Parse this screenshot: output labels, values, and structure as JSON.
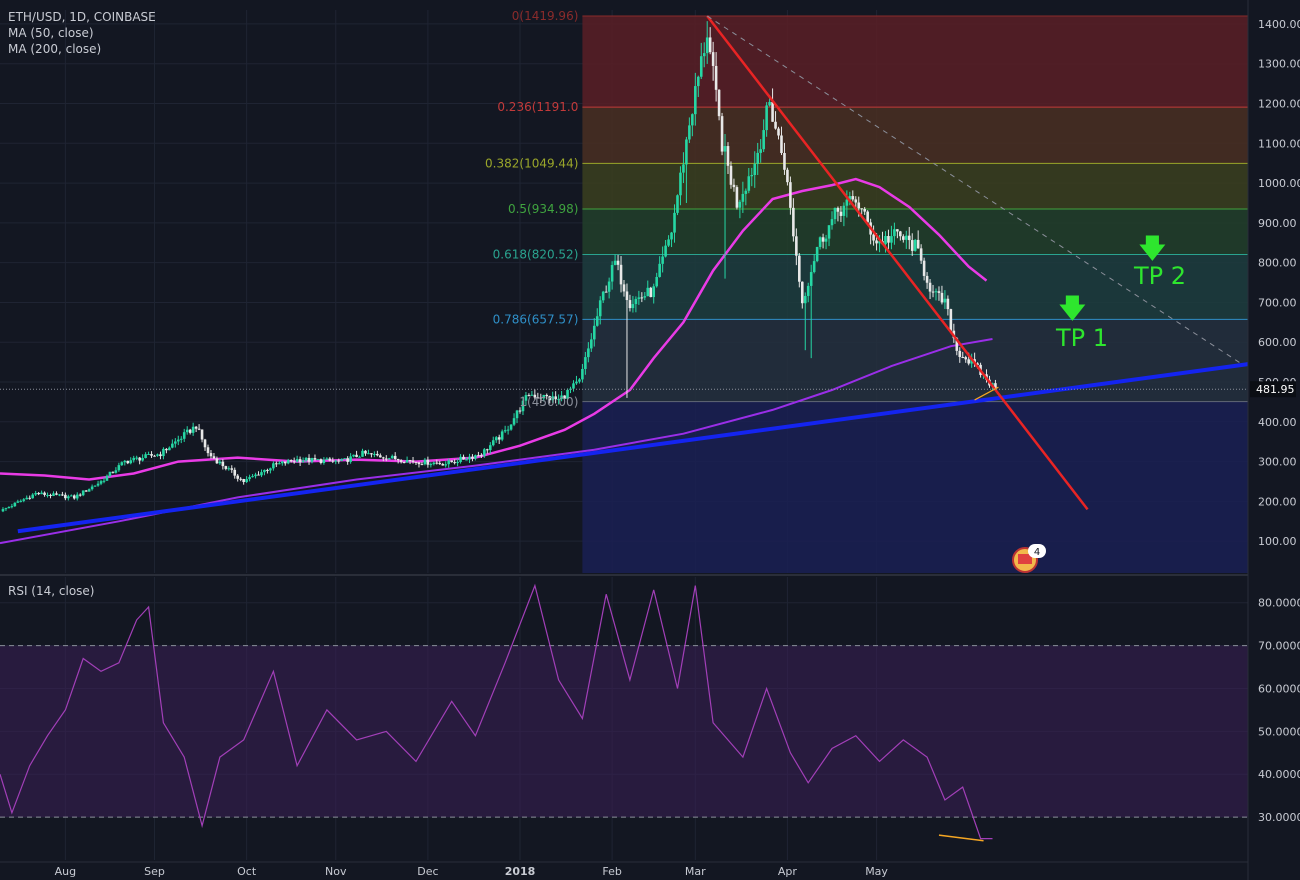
{
  "header": {
    "symbol": "ETH/USD, 1D, COINBASE",
    "ma50": "MA (50, close)",
    "ma200": "MA (200, close)",
    "rsi": "RSI (14, close)"
  },
  "colors": {
    "background": "#131722",
    "bull": "#26d7a4",
    "bear": "#e8e8e8",
    "ma50": "#e93be6",
    "ma200": "#9a2ee8",
    "trend_support": "#1424f0",
    "trend_resistance": "#e82424",
    "rsi_line": "#a23fb8",
    "rsi_band": "#3a1f56",
    "divergence": "#f5a623",
    "tp": "#2ee62e"
  },
  "annotations": {
    "tp1": "TP 1",
    "tp2": "TP 2",
    "tp_arrow": "🡇",
    "event_count": "4"
  },
  "chart_data": [
    {
      "type": "candlestick",
      "title": "ETH/USD, 1D, COINBASE",
      "x_labels": [
        "Aug",
        "Sep",
        "Oct",
        "Nov",
        "Dec",
        "2018",
        "Feb",
        "Mar",
        "Apr",
        "May"
      ],
      "y_ticks": [
        100,
        200,
        300,
        400,
        500,
        600,
        700,
        800,
        900,
        1000,
        1100,
        1200,
        1300,
        1400
      ],
      "ylim": [
        20,
        1435
      ],
      "last_price": "481.95",
      "price_path": [
        {
          "t": 0,
          "p": 175
        },
        {
          "t": 12,
          "p": 220
        },
        {
          "t": 25,
          "p": 210
        },
        {
          "t": 34,
          "p": 250
        },
        {
          "t": 42,
          "p": 300
        },
        {
          "t": 54,
          "p": 320
        },
        {
          "t": 60,
          "p": 355
        },
        {
          "t": 66,
          "p": 390
        },
        {
          "t": 70,
          "p": 320
        },
        {
          "t": 82,
          "p": 250
        },
        {
          "t": 92,
          "p": 290
        },
        {
          "t": 100,
          "p": 305
        },
        {
          "t": 115,
          "p": 300
        },
        {
          "t": 122,
          "p": 320
        },
        {
          "t": 140,
          "p": 300
        },
        {
          "t": 150,
          "p": 295
        },
        {
          "t": 162,
          "p": 320
        },
        {
          "t": 170,
          "p": 375
        },
        {
          "t": 178,
          "p": 470
        },
        {
          "t": 188,
          "p": 455
        },
        {
          "t": 195,
          "p": 500
        },
        {
          "t": 203,
          "p": 720
        },
        {
          "t": 207,
          "p": 800
        },
        {
          "t": 212,
          "p": 700
        },
        {
          "t": 220,
          "p": 730
        },
        {
          "t": 226,
          "p": 880
        },
        {
          "t": 232,
          "p": 1150
        },
        {
          "t": 238,
          "p": 1380
        },
        {
          "t": 243,
          "p": 1100
        },
        {
          "t": 248,
          "p": 950
        },
        {
          "t": 254,
          "p": 1050
        },
        {
          "t": 259,
          "p": 1200
        },
        {
          "t": 264,
          "p": 1050
        },
        {
          "t": 270,
          "p": 700
        },
        {
          "t": 275,
          "p": 840
        },
        {
          "t": 282,
          "p": 930
        },
        {
          "t": 288,
          "p": 960
        },
        {
          "t": 295,
          "p": 850
        },
        {
          "t": 302,
          "p": 870
        },
        {
          "t": 308,
          "p": 840
        },
        {
          "t": 314,
          "p": 720
        },
        {
          "t": 318,
          "p": 700
        },
        {
          "t": 322,
          "p": 580
        },
        {
          "t": 328,
          "p": 540
        },
        {
          "t": 335,
          "p": 482
        }
      ],
      "wicks": [
        {
          "t": 271,
          "low": 580
        },
        {
          "t": 273,
          "low": 560
        },
        {
          "t": 211,
          "low": 460
        },
        {
          "t": 244,
          "low": 760
        },
        {
          "t": 231,
          "low": 950
        }
      ]
    },
    {
      "type": "line",
      "title": "MA (50, close)",
      "series_points": [
        {
          "t": 0,
          "v": 270
        },
        {
          "t": 15,
          "v": 265
        },
        {
          "t": 30,
          "v": 255
        },
        {
          "t": 45,
          "v": 270
        },
        {
          "t": 60,
          "v": 300
        },
        {
          "t": 80,
          "v": 310
        },
        {
          "t": 100,
          "v": 300
        },
        {
          "t": 120,
          "v": 305
        },
        {
          "t": 140,
          "v": 300
        },
        {
          "t": 160,
          "v": 310
        },
        {
          "t": 175,
          "v": 340
        },
        {
          "t": 190,
          "v": 380
        },
        {
          "t": 200,
          "v": 420
        },
        {
          "t": 212,
          "v": 480
        },
        {
          "t": 220,
          "v": 560
        },
        {
          "t": 230,
          "v": 650
        },
        {
          "t": 240,
          "v": 780
        },
        {
          "t": 250,
          "v": 880
        },
        {
          "t": 260,
          "v": 960
        },
        {
          "t": 270,
          "v": 980
        },
        {
          "t": 280,
          "v": 995
        },
        {
          "t": 288,
          "v": 1010
        },
        {
          "t": 296,
          "v": 990
        },
        {
          "t": 306,
          "v": 940
        },
        {
          "t": 316,
          "v": 870
        },
        {
          "t": 326,
          "v": 790
        },
        {
          "t": 332,
          "v": 755
        }
      ]
    },
    {
      "type": "line",
      "title": "MA (200, close)",
      "series_points": [
        {
          "t": 0,
          "v": 95
        },
        {
          "t": 40,
          "v": 150
        },
        {
          "t": 80,
          "v": 210
        },
        {
          "t": 120,
          "v": 255
        },
        {
          "t": 160,
          "v": 290
        },
        {
          "t": 200,
          "v": 330
        },
        {
          "t": 230,
          "v": 370
        },
        {
          "t": 260,
          "v": 430
        },
        {
          "t": 280,
          "v": 480
        },
        {
          "t": 300,
          "v": 540
        },
        {
          "t": 320,
          "v": 590
        },
        {
          "t": 334,
          "v": 608
        }
      ]
    },
    {
      "type": "line",
      "title": "RSI (14, close)",
      "y_ticks": [
        "30.0000",
        "40.0000",
        "50.0000",
        "60.0000",
        "70.0000",
        "80.0000"
      ],
      "ylim": [
        20,
        86
      ],
      "overbought": 70,
      "oversold": 30,
      "values_points": [
        {
          "t": 0,
          "v": 40
        },
        {
          "t": 4,
          "v": 31
        },
        {
          "t": 10,
          "v": 42
        },
        {
          "t": 16,
          "v": 49
        },
        {
          "t": 22,
          "v": 55
        },
        {
          "t": 28,
          "v": 67
        },
        {
          "t": 34,
          "v": 64
        },
        {
          "t": 40,
          "v": 66
        },
        {
          "t": 46,
          "v": 76
        },
        {
          "t": 50,
          "v": 79
        },
        {
          "t": 55,
          "v": 52
        },
        {
          "t": 62,
          "v": 44
        },
        {
          "t": 68,
          "v": 28
        },
        {
          "t": 74,
          "v": 44
        },
        {
          "t": 82,
          "v": 48
        },
        {
          "t": 92,
          "v": 64
        },
        {
          "t": 100,
          "v": 42
        },
        {
          "t": 110,
          "v": 55
        },
        {
          "t": 120,
          "v": 48
        },
        {
          "t": 130,
          "v": 50
        },
        {
          "t": 140,
          "v": 43
        },
        {
          "t": 152,
          "v": 57
        },
        {
          "t": 160,
          "v": 49
        },
        {
          "t": 170,
          "v": 66
        },
        {
          "t": 180,
          "v": 84
        },
        {
          "t": 188,
          "v": 62
        },
        {
          "t": 196,
          "v": 53
        },
        {
          "t": 204,
          "v": 82
        },
        {
          "t": 212,
          "v": 62
        },
        {
          "t": 220,
          "v": 83
        },
        {
          "t": 228,
          "v": 60
        },
        {
          "t": 234,
          "v": 84
        },
        {
          "t": 240,
          "v": 52
        },
        {
          "t": 250,
          "v": 44
        },
        {
          "t": 258,
          "v": 60
        },
        {
          "t": 266,
          "v": 45
        },
        {
          "t": 272,
          "v": 38
        },
        {
          "t": 280,
          "v": 46
        },
        {
          "t": 288,
          "v": 49
        },
        {
          "t": 296,
          "v": 43
        },
        {
          "t": 304,
          "v": 48
        },
        {
          "t": 312,
          "v": 44
        },
        {
          "t": 318,
          "v": 34
        },
        {
          "t": 324,
          "v": 37
        },
        {
          "t": 330,
          "v": 25
        },
        {
          "t": 334,
          "v": 25
        }
      ]
    },
    {
      "type": "fibonacci",
      "levels": [
        {
          "label": "0(1419.96)",
          "value": 1419.96,
          "color": "#8a2b2b"
        },
        {
          "label": "0.236(1191.0",
          "value": 1191.0,
          "color": "#c23a3a"
        },
        {
          "label": "0.382(1049.44)",
          "value": 1049.44,
          "color": "#9aa62a"
        },
        {
          "label": "0.5(934.98)",
          "value": 934.98,
          "color": "#3fa33f"
        },
        {
          "label": "0.618(820.52)",
          "value": 820.52,
          "color": "#2aa38f"
        },
        {
          "label": "0.786(657.57)",
          "value": 657.57,
          "color": "#2f8fc7"
        },
        {
          "label": "1(450.00)",
          "value": 450.0,
          "color": "#8a8f9a"
        }
      ]
    }
  ]
}
